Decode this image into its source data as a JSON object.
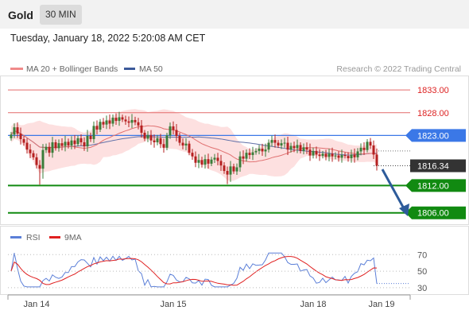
{
  "header": {
    "symbol": "Gold",
    "timeframe": "30 MIN"
  },
  "datetime": "Tuesday, January 18, 2022 5:20:08 AM CET",
  "legend": [
    {
      "label": "MA 20 + Bollinger Bands",
      "color": "#f08a8a"
    },
    {
      "label": "MA 50",
      "color": "#3c5a9a"
    }
  ],
  "copyright": "Research © 2022 Trading Central",
  "colors": {
    "bull": "#3a7d3a",
    "bear": "#b52020",
    "band": "#fde0e0",
    "ma20": "#e07070",
    "ma50": "#6070a8",
    "resistance": "#e46a6a",
    "pivot": "#3b78e7",
    "support": "#118a11",
    "last": "#333333",
    "arrow": "#2d5b9a"
  },
  "chart_data": [
    {
      "type": "candlestick",
      "ylim": [
        1803.5,
        1836
      ],
      "x_labels": [
        "Jan 14",
        "Jan 15",
        "Jan 18",
        "Jan 19"
      ],
      "levels": [
        {
          "value": 1833.0,
          "label": "1833.00",
          "kind": "resistance"
        },
        {
          "value": 1828.0,
          "label": "1828.00",
          "kind": "resistance"
        },
        {
          "value": 1823.0,
          "label": "1823.00",
          "kind": "pivot"
        },
        {
          "value": 1816.34,
          "label": "1816.34",
          "kind": "last"
        },
        {
          "value": 1812.0,
          "label": "1812.00",
          "kind": "support"
        },
        {
          "value": 1806.0,
          "label": "1806.00",
          "kind": "support"
        }
      ],
      "closes": [
        1823.2,
        1824.8,
        1823.4,
        1822.2,
        1821.4,
        1819.9,
        1819.1,
        1818.2,
        1816.5,
        1815.7,
        1819.8,
        1820.5,
        1819.2,
        1821.5,
        1820.2,
        1821.3,
        1820.7,
        1821.6,
        1820.8,
        1821.9,
        1821.1,
        1822.4,
        1821.5,
        1820.6,
        1822.9,
        1822.2,
        1825.1,
        1824.3,
        1826.0,
        1825.4,
        1826.3,
        1825.6,
        1826.9,
        1826.2,
        1827.0,
        1826.5,
        1826.1,
        1825.8,
        1826.4,
        1825.9,
        1825.2,
        1823.6,
        1822.3,
        1823.1,
        1821.9,
        1821.5,
        1822.4,
        1821.1,
        1820.3,
        1823.0,
        1825.0,
        1824.2,
        1822.9,
        1821.4,
        1820.8,
        1821.2,
        1819.2,
        1818.4,
        1817.0,
        1817.6,
        1816.6,
        1817.8,
        1816.8,
        1817.7,
        1818.1,
        1817.4,
        1816.4,
        1815.2,
        1814.4,
        1816.2,
        1815.1,
        1816.0,
        1818.4,
        1817.9,
        1819.2,
        1818.7,
        1819.3,
        1819.6,
        1820.1,
        1819.5,
        1819.9,
        1821.4,
        1822.0,
        1821.4,
        1820.8,
        1821.3,
        1821.4,
        1819.9,
        1820.7,
        1820.2,
        1820.9,
        1819.6,
        1820.4,
        1819.9,
        1818.6,
        1819.6,
        1818.8,
        1818.5,
        1819.0,
        1818.3,
        1819.0,
        1818.4,
        1818.6,
        1818.1,
        1818.7,
        1818.5,
        1818.0,
        1818.8,
        1818.2,
        1819.5,
        1820.3,
        1819.8,
        1821.6,
        1820.8,
        1818.8,
        1816.34
      ],
      "series": [
        {
          "name": "MA 20 + Bollinger Bands"
        },
        {
          "name": "MA 50"
        }
      ]
    },
    {
      "type": "line",
      "ylim": [
        27,
        77
      ],
      "yticks": [
        70,
        50,
        30
      ],
      "series": [
        {
          "name": "RSI",
          "color": "#5b7fd8"
        },
        {
          "name": "9MA",
          "color": "#e02020"
        }
      ]
    }
  ]
}
